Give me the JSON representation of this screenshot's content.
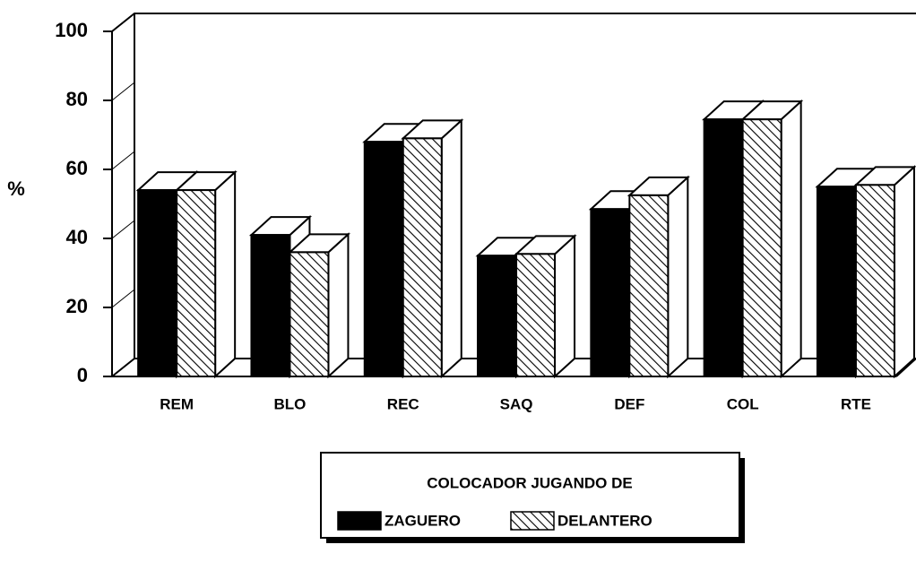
{
  "chart_data": {
    "type": "bar3d",
    "y_label": "%",
    "categories": [
      "REM",
      "BLO",
      "REC",
      "SAQ",
      "DEF",
      "COL",
      "RTE"
    ],
    "series": [
      {
        "name": "ZAGUERO",
        "color": "#000000",
        "pattern": "solid",
        "values": [
          54,
          41,
          68,
          35,
          48.5,
          74.5,
          55
        ]
      },
      {
        "name": "DELANTERO",
        "color": "#000000",
        "pattern": "hatch",
        "values": [
          54,
          36,
          69,
          35.5,
          52.5,
          74.5,
          55.5
        ]
      }
    ],
    "legend_title": "COLOCADOR JUGANDO DE",
    "ylim": [
      0,
      100
    ],
    "yticks": [
      0,
      20,
      40,
      60,
      80,
      100
    ]
  }
}
